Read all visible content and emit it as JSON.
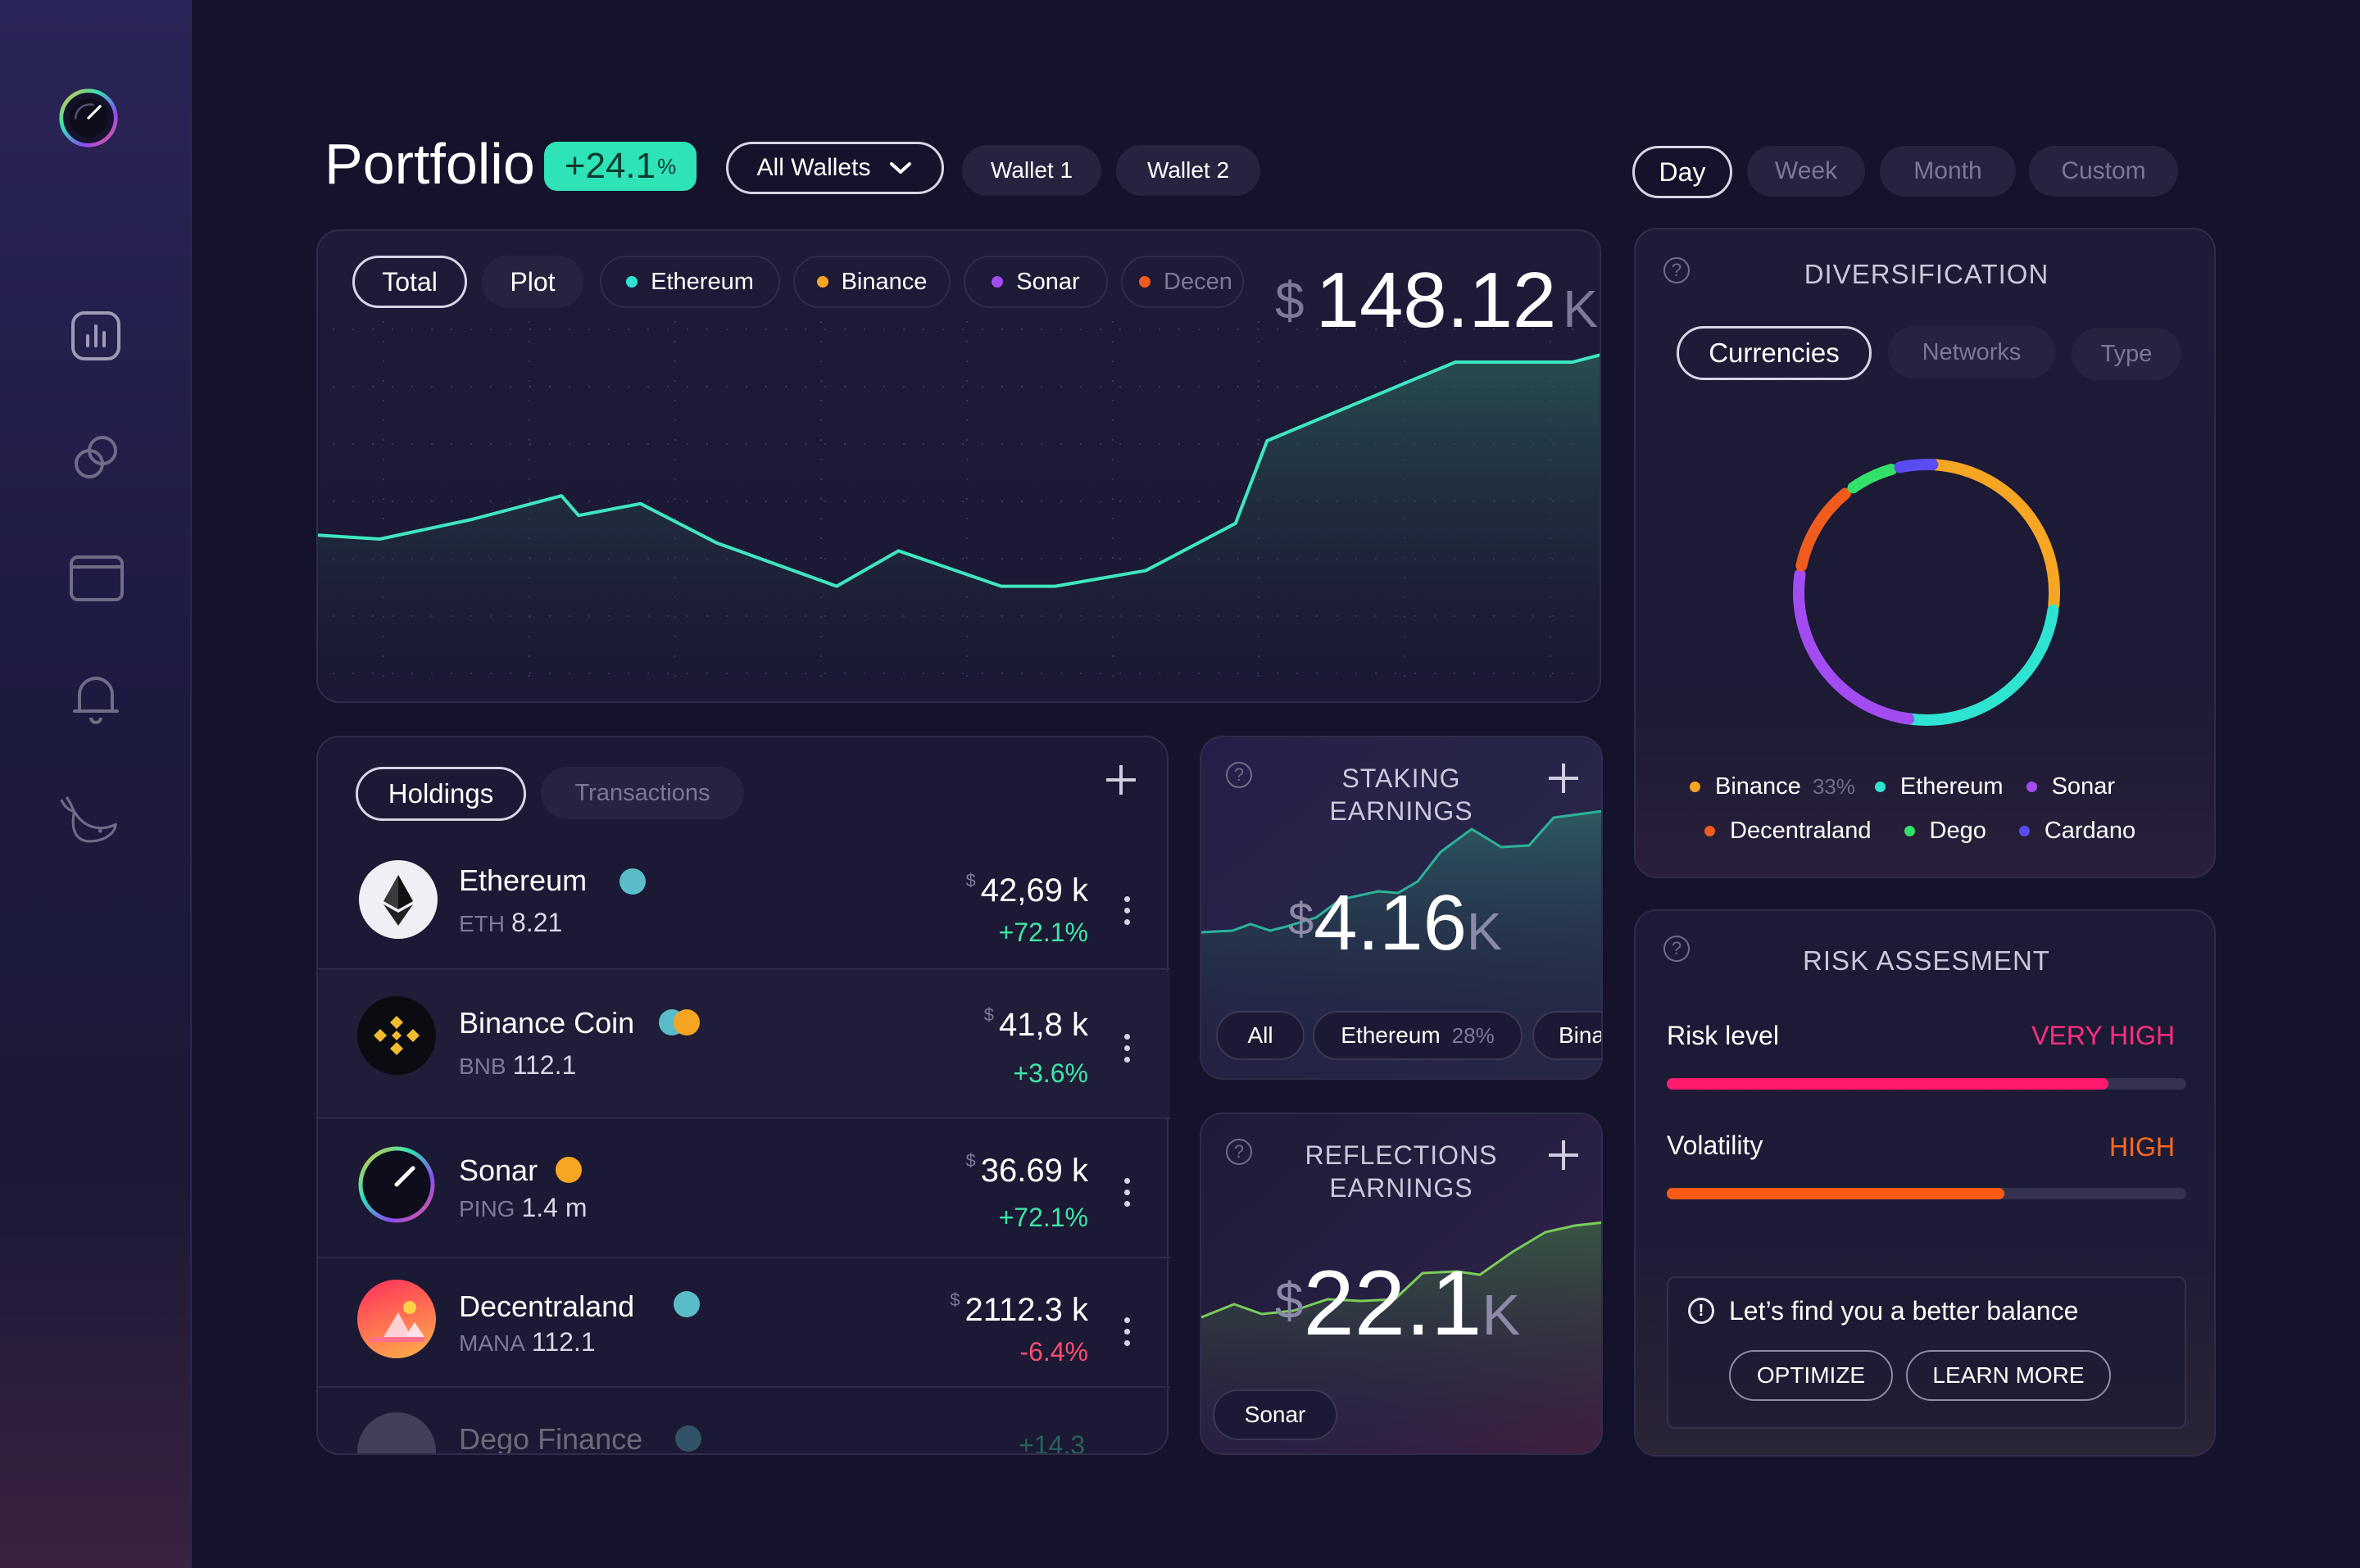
{
  "header": {
    "title": "Portfolio",
    "change_sign": "+",
    "change_value": "24.1",
    "change_unit": "%",
    "wallet_select": "All Wallets",
    "wallets": [
      "Wallet 1",
      "Wallet 2"
    ],
    "ranges": [
      "Day",
      "Week",
      "Month",
      "Custom"
    ]
  },
  "chart": {
    "tabs": [
      "Total",
      "Plot"
    ],
    "coins": [
      {
        "label": "Ethereum",
        "color": "#2ee3d0"
      },
      {
        "label": "Binance",
        "color": "#f6a623"
      },
      {
        "label": "Sonar",
        "color": "#a24cf2"
      },
      {
        "label": "Decen",
        "color": "#f05b1e"
      }
    ],
    "currency": "$",
    "value": "148.12",
    "suffix": "K"
  },
  "chart_data": {
    "type": "area",
    "series": [
      {
        "values": [
          0.56,
          0.55,
          0.6,
          0.66,
          0.61,
          0.64,
          0.54,
          0.43,
          0.52,
          0.43,
          0.43,
          0.47,
          0.59,
          0.8,
          1.0,
          1.0,
          1.02
        ]
      }
    ],
    "color": "#3ee6c1"
  },
  "holdings": {
    "tabs": [
      "Holdings",
      "Transactions"
    ],
    "rows": [
      {
        "name": "Ethereum",
        "ticker": "ETH",
        "amount": "8.21",
        "currency": "$",
        "value": "42,69 k",
        "change": "+72.1%",
        "positive": true
      },
      {
        "name": "Binance Coin",
        "ticker": "BNB",
        "amount": "112.1",
        "currency": "$",
        "value": "41,8 k",
        "change": "+3.6%",
        "positive": true
      },
      {
        "name": "Sonar",
        "ticker": "PING",
        "amount": "1.4 m",
        "currency": "$",
        "value": "36.69 k",
        "change": "+72.1%",
        "positive": true
      },
      {
        "name": "Decentraland",
        "ticker": "MANA",
        "amount": "112.1",
        "currency": "$",
        "value": "2112.3 k",
        "change": "-6.4%",
        "positive": false
      },
      {
        "name": "Dego Finance",
        "change": "+14.3"
      }
    ]
  },
  "staking": {
    "title_line1": "STAKING",
    "title_line2": "EARNINGS",
    "currency": "$",
    "value": "4.16",
    "suffix": "K",
    "filters": [
      "All",
      "Ethereum",
      "Bina"
    ],
    "filter_pct": "28%"
  },
  "reflections": {
    "title_line1": "REFLECTIONS",
    "title_line2": "EARNINGS",
    "currency": "$",
    "value": "22.1",
    "suffix": "K",
    "filters": [
      "Sonar"
    ]
  },
  "diversification": {
    "title": "DIVERSIFICATION",
    "tabs": [
      "Currencies",
      "Networks",
      "Type"
    ],
    "legend": [
      {
        "label": "Binance",
        "pct": "33%",
        "color": "#f6a623"
      },
      {
        "label": "Ethereum",
        "color": "#2ee3d0"
      },
      {
        "label": "Sonar",
        "color": "#a24cf2"
      },
      {
        "label": "Decentraland",
        "color": "#f05b1e"
      },
      {
        "label": "Dego",
        "color": "#33e06a"
      },
      {
        "label": "Cardano",
        "color": "#5b4cf2"
      }
    ]
  },
  "risk": {
    "title": "RISK ASSESMENT",
    "rows": [
      {
        "label": "Risk level",
        "value": "VERY HIGH",
        "color": "#ff2e7e",
        "level": 0.85
      },
      {
        "label": "Volatility",
        "value": "HIGH",
        "color": "#ff6a1e",
        "level": 0.65
      }
    ],
    "hint": "Let’s find you a better balance",
    "buttons": [
      "OPTIMIZE",
      "LEARN MORE"
    ]
  }
}
